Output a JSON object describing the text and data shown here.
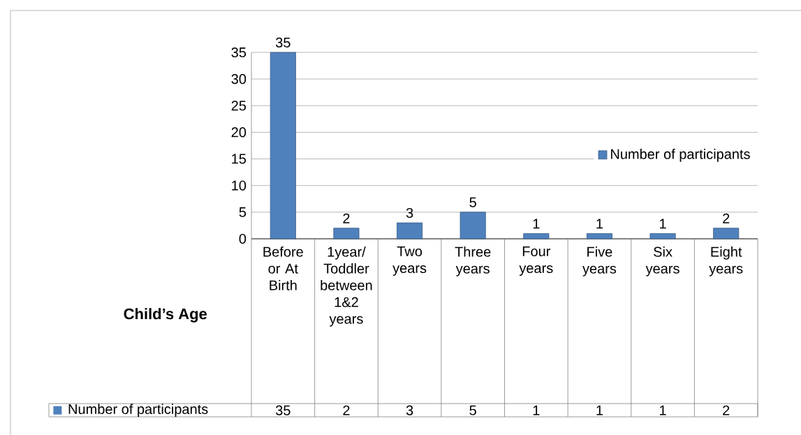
{
  "chart_data": {
    "type": "bar",
    "xlabel": "Child’s Age",
    "categories": [
      "Before or At Birth",
      "1year/ Toddler between 1&2 years",
      "Two years",
      "Three years",
      "Four years",
      "Five years",
      "Six years",
      "Eight years"
    ],
    "series": [
      {
        "name": "Number of participants",
        "color": "#4f81bd",
        "values": [
          35,
          2,
          3,
          5,
          1,
          1,
          1,
          2
        ],
        "value_labels": [
          "35",
          "2",
          "3",
          "5",
          "1",
          "1",
          "1",
          "2"
        ]
      }
    ],
    "ylim": [
      0,
      35
    ],
    "yticks": [
      0,
      5,
      10,
      15,
      20,
      25,
      30,
      35
    ],
    "grid": "y",
    "legend": "right",
    "data_labels": true
  }
}
